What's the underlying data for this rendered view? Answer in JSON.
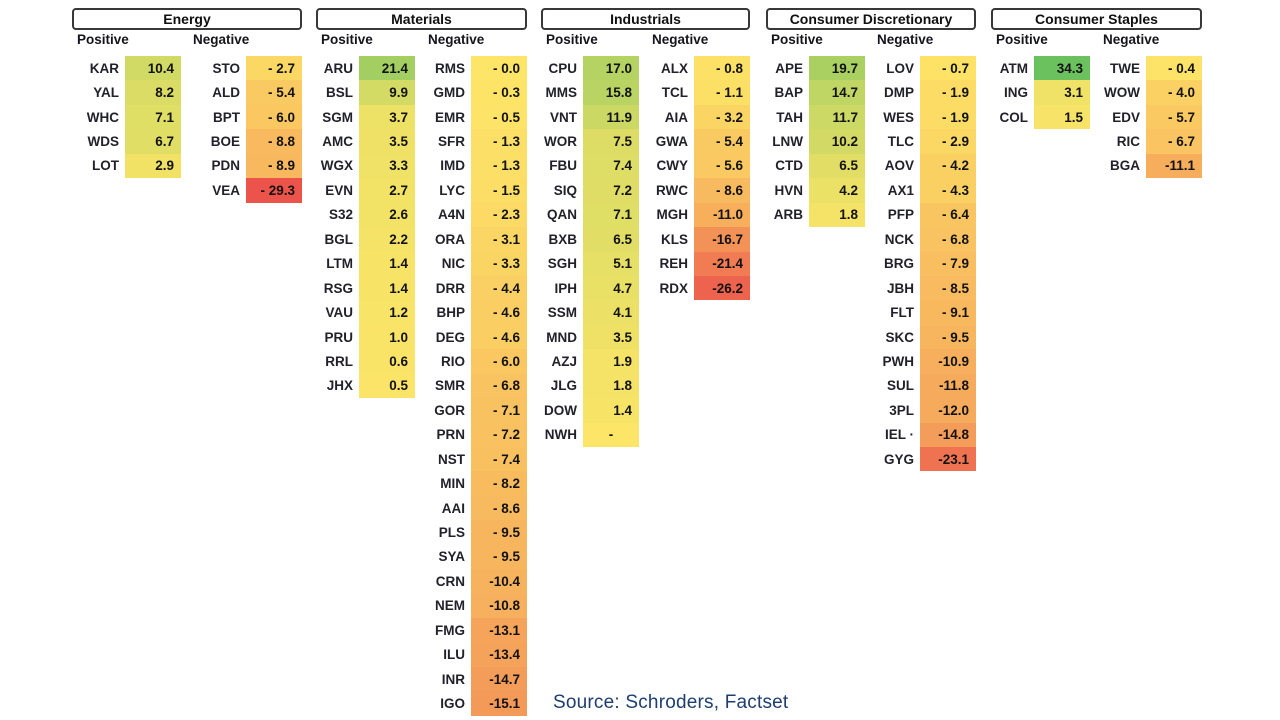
{
  "chart_data": {
    "type": "heatmap",
    "title": "",
    "legend": "none",
    "color_scale": {
      "min": -29.3,
      "mid": 0,
      "max": 34.3,
      "min_color": "#EC544B",
      "mid_color": "#FDE567",
      "max_color": "#6CC15F"
    },
    "groups": [
      {
        "title": "Energy",
        "positive_label": "Positive",
        "negative_label": "Negative",
        "positive": [
          {
            "ticker": "KAR",
            "value": "10.4"
          },
          {
            "ticker": "YAL",
            "value": "8.2"
          },
          {
            "ticker": "WHC",
            "value": "7.1"
          },
          {
            "ticker": "WDS",
            "value": "6.7"
          },
          {
            "ticker": "LOT",
            "value": "2.9"
          }
        ],
        "negative": [
          {
            "ticker": "STO",
            "value": "- 2.7"
          },
          {
            "ticker": "ALD",
            "value": "- 5.4"
          },
          {
            "ticker": "BPT",
            "value": "- 6.0"
          },
          {
            "ticker": "BOE",
            "value": "- 8.8"
          },
          {
            "ticker": "PDN",
            "value": "- 8.9"
          },
          {
            "ticker": "VEA",
            "value": "- 29.3"
          }
        ]
      },
      {
        "title": "Materials",
        "positive_label": "Positive",
        "negative_label": "Negative",
        "positive": [
          {
            "ticker": "ARU",
            "value": "21.4"
          },
          {
            "ticker": "BSL",
            "value": "9.9"
          },
          {
            "ticker": "SGM",
            "value": "3.7"
          },
          {
            "ticker": "AMC",
            "value": "3.5"
          },
          {
            "ticker": "WGX",
            "value": "3.3"
          },
          {
            "ticker": "EVN",
            "value": "2.7"
          },
          {
            "ticker": "S32",
            "value": "2.6"
          },
          {
            "ticker": "BGL",
            "value": "2.2"
          },
          {
            "ticker": "LTM",
            "value": "1.4"
          },
          {
            "ticker": "RSG",
            "value": "1.4"
          },
          {
            "ticker": "VAU",
            "value": "1.2"
          },
          {
            "ticker": "PRU",
            "value": "1.0"
          },
          {
            "ticker": "RRL",
            "value": "0.6"
          },
          {
            "ticker": "JHX",
            "value": "0.5"
          }
        ],
        "negative": [
          {
            "ticker": "RMS",
            "value": "- 0.0"
          },
          {
            "ticker": "GMD",
            "value": "- 0.3"
          },
          {
            "ticker": "EMR",
            "value": "- 0.5"
          },
          {
            "ticker": "SFR",
            "value": "- 1.3"
          },
          {
            "ticker": "IMD",
            "value": "- 1.3"
          },
          {
            "ticker": "LYC",
            "value": "- 1.5"
          },
          {
            "ticker": "A4N",
            "value": "- 2.3"
          },
          {
            "ticker": "ORA",
            "value": "- 3.1"
          },
          {
            "ticker": "NIC",
            "value": "- 3.3"
          },
          {
            "ticker": "DRR",
            "value": "- 4.4"
          },
          {
            "ticker": "BHP",
            "value": "- 4.6"
          },
          {
            "ticker": "DEG",
            "value": "- 4.6"
          },
          {
            "ticker": "RIO",
            "value": "- 6.0"
          },
          {
            "ticker": "SMR",
            "value": "- 6.8"
          },
          {
            "ticker": "GOR",
            "value": "- 7.1"
          },
          {
            "ticker": "PRN",
            "value": "- 7.2"
          },
          {
            "ticker": "NST",
            "value": "- 7.4"
          },
          {
            "ticker": "MIN",
            "value": "- 8.2"
          },
          {
            "ticker": "AAI",
            "value": "- 8.6"
          },
          {
            "ticker": "PLS",
            "value": "- 9.5"
          },
          {
            "ticker": "SYA",
            "value": "- 9.5"
          },
          {
            "ticker": "CRN",
            "value": "-10.4"
          },
          {
            "ticker": "NEM",
            "value": "-10.8"
          },
          {
            "ticker": "FMG",
            "value": "-13.1"
          },
          {
            "ticker": "ILU",
            "value": "-13.4"
          },
          {
            "ticker": "INR",
            "value": "-14.7"
          },
          {
            "ticker": "IGO",
            "value": "-15.1"
          }
        ]
      },
      {
        "title": "Industrials",
        "positive_label": "Positive",
        "negative_label": "Negative",
        "positive": [
          {
            "ticker": "CPU",
            "value": "17.0"
          },
          {
            "ticker": "MMS",
            "value": "15.8"
          },
          {
            "ticker": "VNT",
            "value": "11.9"
          },
          {
            "ticker": "WOR",
            "value": "7.5"
          },
          {
            "ticker": "FBU",
            "value": "7.4"
          },
          {
            "ticker": "SIQ",
            "value": "7.2"
          },
          {
            "ticker": "QAN",
            "value": "7.1"
          },
          {
            "ticker": "BXB",
            "value": "6.5"
          },
          {
            "ticker": "SGH",
            "value": "5.1"
          },
          {
            "ticker": "IPH",
            "value": "4.7"
          },
          {
            "ticker": "SSM",
            "value": "4.1"
          },
          {
            "ticker": "MND",
            "value": "3.5"
          },
          {
            "ticker": "AZJ",
            "value": "1.9"
          },
          {
            "ticker": "JLG",
            "value": "1.8"
          },
          {
            "ticker": "DOW",
            "value": "1.4"
          },
          {
            "ticker": "NWH",
            "value": "-"
          }
        ],
        "negative": [
          {
            "ticker": "ALX",
            "value": "- 0.8"
          },
          {
            "ticker": "TCL",
            "value": "- 1.1"
          },
          {
            "ticker": "AIA",
            "value": "- 3.2"
          },
          {
            "ticker": "GWA",
            "value": "- 5.4"
          },
          {
            "ticker": "CWY",
            "value": "- 5.6"
          },
          {
            "ticker": "RWC",
            "value": "- 8.6"
          },
          {
            "ticker": "MGH",
            "value": "-11.0"
          },
          {
            "ticker": "KLS",
            "value": "-16.7"
          },
          {
            "ticker": "REH",
            "value": "-21.4"
          },
          {
            "ticker": "RDX",
            "value": "-26.2"
          }
        ]
      },
      {
        "title": "Consumer Discretionary",
        "positive_label": "Positive",
        "negative_label": "Negative",
        "positive": [
          {
            "ticker": "APE",
            "value": "19.7"
          },
          {
            "ticker": "BAP",
            "value": "14.7"
          },
          {
            "ticker": "TAH",
            "value": "11.7"
          },
          {
            "ticker": "LNW",
            "value": "10.2"
          },
          {
            "ticker": "CTD",
            "value": "6.5"
          },
          {
            "ticker": "HVN",
            "value": "4.2"
          },
          {
            "ticker": "ARB",
            "value": "1.8"
          }
        ],
        "negative": [
          {
            "ticker": "LOV",
            "value": "- 0.7"
          },
          {
            "ticker": "DMP",
            "value": "- 1.9"
          },
          {
            "ticker": "WES",
            "value": "- 1.9"
          },
          {
            "ticker": "TLC",
            "value": "- 2.9"
          },
          {
            "ticker": "AOV",
            "value": "- 4.2"
          },
          {
            "ticker": "AX1",
            "value": "- 4.3"
          },
          {
            "ticker": "PFP",
            "value": "- 6.4"
          },
          {
            "ticker": "NCK",
            "value": "- 6.8"
          },
          {
            "ticker": "BRG",
            "value": "- 7.9"
          },
          {
            "ticker": "JBH",
            "value": "- 8.5"
          },
          {
            "ticker": "FLT",
            "value": "- 9.1"
          },
          {
            "ticker": "SKC",
            "value": "- 9.5"
          },
          {
            "ticker": "PWH",
            "value": "-10.9"
          },
          {
            "ticker": "SUL",
            "value": "-11.8"
          },
          {
            "ticker": "3PL",
            "value": "-12.0"
          },
          {
            "ticker": "IEL ·",
            "value": "-14.8"
          },
          {
            "ticker": "GYG",
            "value": "-23.1"
          }
        ]
      },
      {
        "title": "Consumer Staples",
        "positive_label": "Positive",
        "negative_label": "Negative",
        "positive": [
          {
            "ticker": "ATM",
            "value": "34.3"
          },
          {
            "ticker": "ING",
            "value": "3.1"
          },
          {
            "ticker": "COL",
            "value": "1.5"
          }
        ],
        "negative": [
          {
            "ticker": "TWE",
            "value": "- 0.4"
          },
          {
            "ticker": "WOW",
            "value": "- 4.0"
          },
          {
            "ticker": "EDV",
            "value": "- 5.7"
          },
          {
            "ticker": "RIC",
            "value": "- 6.7"
          },
          {
            "ticker": "BGA",
            "value": "-11.1"
          }
        ]
      }
    ]
  },
  "source_caption": "Source: Schroders, Factset"
}
